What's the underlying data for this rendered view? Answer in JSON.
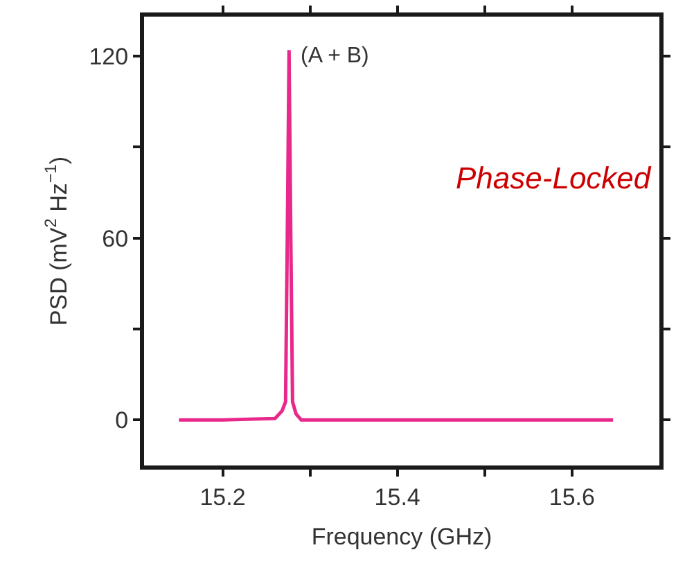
{
  "chart_data": {
    "type": "line",
    "xlabel": "Frequency (GHz)",
    "ylabel": "PSD (mV$^{2}$ Hz$^{−1}$)",
    "x": [
      15.15,
      15.2,
      15.26,
      15.268,
      15.272,
      15.274,
      15.276,
      15.278,
      15.28,
      15.284,
      15.29,
      15.4,
      15.5,
      15.647
    ],
    "series": [
      {
        "color": "#e8288a",
        "values": [
          0,
          0,
          0.5,
          3,
          6,
          60,
          122,
          60,
          6,
          2,
          0,
          0,
          0,
          0
        ]
      }
    ],
    "xlim": [
      15.11,
      15.7
    ],
    "ylim": [
      -15,
      133
    ],
    "xticks": [
      15.2,
      {
        "value": 15.3,
        "label": null
      },
      15.4,
      {
        "value": 15.5,
        "label": null
      },
      15.6
    ],
    "yticks": [
      0,
      {
        "value": 30,
        "label": null
      },
      60,
      {
        "value": 90,
        "label": null
      },
      120
    ],
    "marker": "none",
    "line_style": "solid",
    "annotations": [
      {
        "text": "(A + B)",
        "x": 15.276,
        "y": 120
      },
      "Phase-Locked"
    ]
  }
}
